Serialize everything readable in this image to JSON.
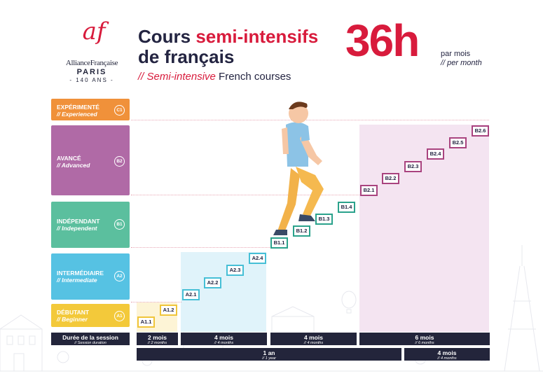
{
  "logo": {
    "mark": "af",
    "name": "AllianceFrançaise",
    "city": "PARIS",
    "years": "- 140 ANS -"
  },
  "header": {
    "title_line1_a": "Cours ",
    "title_line1_b": "semi-intensifs",
    "title_line2": "de français",
    "subtitle_a": "// ",
    "subtitle_b": "Semi-intensive",
    "subtitle_c": " French courses",
    "hours": "36h",
    "per_month_fr": "par mois",
    "per_month_en": "// per month"
  },
  "levels": [
    {
      "fr": "EXPÉRIMENTÉ",
      "en": "// Experienced",
      "code": "C1",
      "color": "#f0913a"
    },
    {
      "fr": "AVANCÉ",
      "en": "// Advanced",
      "code": "B2",
      "color": "#b06aa6"
    },
    {
      "fr": "INDÉPENDANT",
      "en": "// Independent",
      "code": "B1",
      "color": "#5bbf9e"
    },
    {
      "fr": "INTERMÉDIAIRE",
      "en": "// Intermediate",
      "code": "A2",
      "color": "#56c2e3"
    },
    {
      "fr": "DÉBUTANT",
      "en": "// Beginner",
      "code": "A1",
      "color": "#f3c93a"
    }
  ],
  "steps": [
    "A1.1",
    "A1.2",
    "A2.1",
    "A2.2",
    "A2.3",
    "A2.4",
    "B1.1",
    "B1.2",
    "B1.3",
    "B1.4",
    "B2.1",
    "B2.2",
    "B2.3",
    "B2.4",
    "B2.5",
    "B2.6"
  ],
  "durations": {
    "session_fr": "Durée de la session",
    "session_en": "// Session duration",
    "a1_fr": "2 mois",
    "a1_en": "// 2 months",
    "a2_fr": "4 mois",
    "a2_en": "// 4 months",
    "b1_fr": "4 mois",
    "b1_en": "// 4 months",
    "b2_fr": "6 mois",
    "b2_en": "// 6 months",
    "year_fr": "1 an",
    "year_en": "// 1 year",
    "b2b_fr": "4 mois",
    "b2b_en": "// 4 months"
  }
}
